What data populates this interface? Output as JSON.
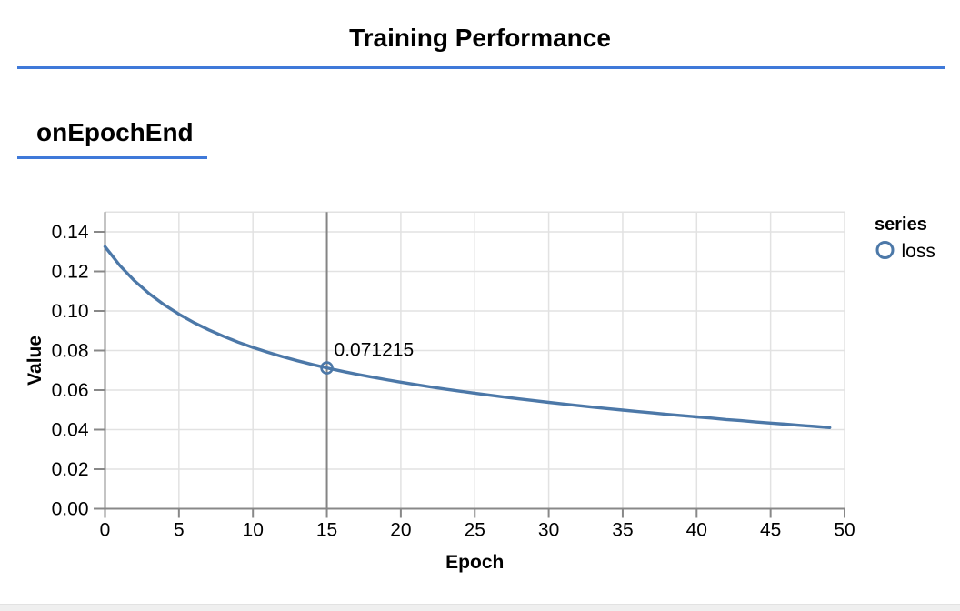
{
  "header": {
    "title": "Training Performance"
  },
  "section": {
    "title": "onEpochEnd"
  },
  "colors": {
    "accent_blue": "#3f79d9",
    "series_blue": "#4c78a8",
    "domain_gray": "#888888",
    "grid_gray": "#e2e2e2",
    "crosshair_gray": "#848484",
    "text_black": "#000000",
    "bottom_strip_gray": "#efefef"
  },
  "chart_data": {
    "type": "line",
    "xlabel": "Epoch",
    "ylabel": "Value",
    "xlim": [
      0,
      50
    ],
    "ylim": [
      0,
      0.15
    ],
    "x_ticks": [
      0,
      5,
      10,
      15,
      20,
      25,
      30,
      35,
      40,
      45,
      50
    ],
    "y_ticks": [
      0,
      0.02,
      0.04,
      0.06,
      0.08,
      0.1,
      0.12,
      0.14
    ],
    "grid": true,
    "legend": {
      "title": "series",
      "position": "right",
      "entries": [
        {
          "label": "loss",
          "symbol": "circle"
        }
      ]
    },
    "series": [
      {
        "name": "loss",
        "x": [
          0,
          1,
          2,
          3,
          4,
          5,
          6,
          7,
          8,
          9,
          10,
          11,
          12,
          13,
          14,
          15,
          16,
          17,
          18,
          19,
          20,
          21,
          22,
          23,
          24,
          25,
          26,
          27,
          28,
          29,
          30,
          31,
          32,
          33,
          34,
          35,
          36,
          37,
          38,
          39,
          40,
          41,
          42,
          43,
          44,
          45,
          46,
          47,
          48,
          49
        ],
        "values": [
          0.1325,
          0.123,
          0.1152,
          0.10871,
          0.10314,
          0.09835,
          0.09417,
          0.09049,
          0.0872,
          0.08424,
          0.08158,
          0.07914,
          0.07692,
          0.07486,
          0.07297,
          0.071215,
          0.06958,
          0.06805,
          0.06662,
          0.06527,
          0.06401,
          0.06279,
          0.06163,
          0.06051,
          0.05944,
          0.05842,
          0.05742,
          0.05646,
          0.05555,
          0.05465,
          0.0538,
          0.05296,
          0.05215,
          0.05137,
          0.05061,
          0.04988,
          0.04917,
          0.04848,
          0.04771,
          0.04706,
          0.04643,
          0.04582,
          0.04512,
          0.04453,
          0.04386,
          0.04331,
          0.04277,
          0.04214,
          0.04162,
          0.04101
        ]
      }
    ],
    "highlight": {
      "x": 15,
      "value": 0.071215,
      "label": "0.071215"
    }
  }
}
